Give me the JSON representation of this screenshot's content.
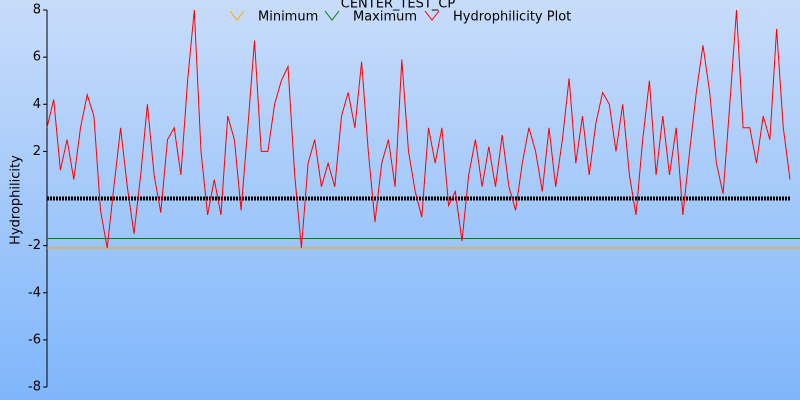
{
  "chart_data": {
    "type": "line",
    "title": "CENTER_TEST_CP",
    "y_label": "Hydrophilicity",
    "ylim": [
      -8,
      8
    ],
    "yticks": [
      -8,
      -6,
      -4,
      -2,
      2,
      4,
      6,
      8
    ],
    "reference_line": 0,
    "reference_color": "#000000",
    "legend": "top",
    "series": [
      {
        "name": "Minimum",
        "color": "#ffa500",
        "level": -2.1
      },
      {
        "name": "Maximum",
        "color": "#008000",
        "level": -1.7
      },
      {
        "name": "Hydrophilicity Plot",
        "color": "#ff0000",
        "values": [
          3,
          4.2,
          1.2,
          2.5,
          0.8,
          3,
          4.4,
          3.5,
          -0.5,
          -2.1,
          0.5,
          3,
          0.5,
          -1.5,
          1,
          4,
          1,
          -0.6,
          2.5,
          3,
          1,
          5,
          8,
          2,
          -0.7,
          0.8,
          -0.7,
          3.5,
          2.5,
          -0.5,
          3,
          6.7,
          2,
          2,
          4,
          5,
          5.6,
          1,
          -2.1,
          1.5,
          2.5,
          0.5,
          1.5,
          0.5,
          3.5,
          4.5,
          3,
          5.8,
          2,
          -1,
          1.5,
          2.5,
          0.5,
          5.9,
          2,
          0.3,
          -0.8,
          3,
          1.5,
          3,
          -0.3,
          0.3,
          -1.8,
          1,
          2.5,
          0.5,
          2.2,
          0.5,
          2.7,
          0.5,
          -0.5,
          1.5,
          3,
          2,
          0.3,
          3,
          0.5,
          2.5,
          5.1,
          1.5,
          3.5,
          1,
          3.2,
          4.5,
          4,
          2,
          4,
          1,
          -0.7,
          2.5,
          5,
          1,
          3.5,
          1,
          3,
          -0.7,
          2,
          4.5,
          6.5,
          4.5,
          1.5,
          0.2,
          4,
          8,
          3,
          3,
          1.5,
          3.5,
          2.5,
          7.2,
          3,
          0.8
        ]
      }
    ]
  }
}
